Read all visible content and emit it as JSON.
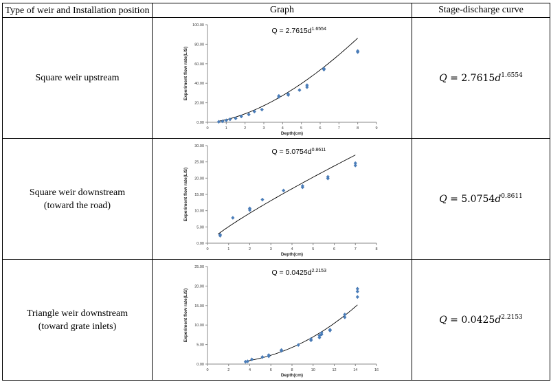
{
  "headers": {
    "col1": "Type of weir and Installation position",
    "col2": "Graph",
    "col3": "Stage-discharge curve"
  },
  "rows": [
    {
      "type_line1": "Square weir upstream",
      "type_line2": "",
      "equation": {
        "coef": "Q = 2.7615d",
        "exp": "1.6554"
      },
      "curve": {
        "prefix": "Q",
        "mid": " = 2.7615",
        "var": "d",
        "exp": "1.6554"
      }
    },
    {
      "type_line1": "Square weir downstream",
      "type_line2": "(toward the road)",
      "equation": {
        "coef": "Q = 5.0754d",
        "exp": "0.8611"
      },
      "curve": {
        "prefix": "Q",
        "mid": " = 5.0754",
        "var": "d",
        "exp": "0.8611"
      }
    },
    {
      "type_line1": "Triangle weir downstream",
      "type_line2": "(toward grate inlets)",
      "equation": {
        "coef": "Q = 0.0425d",
        "exp": "2.2153"
      },
      "curve": {
        "prefix": "Q",
        "mid": " = 0.0425",
        "var": "d",
        "exp": "2.2153"
      }
    }
  ],
  "chart_data": [
    {
      "type": "scatter",
      "xlabel": "Depth(cm)",
      "ylabel": "Experiment flow rate(L/S)",
      "xlim": [
        0,
        9
      ],
      "ylim": [
        0,
        100
      ],
      "xticks": [
        "0",
        "1",
        "2",
        "3",
        "4",
        "5",
        "6",
        "7",
        "8",
        "9"
      ],
      "yticks": [
        "0.00",
        "20.00",
        "40.00",
        "60.00",
        "80.00",
        "100.00"
      ],
      "fit": {
        "a": 2.7615,
        "b": 1.6554,
        "x_from": 0.6,
        "x_to": 8
      },
      "annotation": {
        "text": "Q = 2.7615d",
        "sup": "1.6554"
      },
      "points": [
        [
          0.6,
          0.5
        ],
        [
          0.8,
          1
        ],
        [
          1.0,
          2
        ],
        [
          1.2,
          3
        ],
        [
          1.5,
          4
        ],
        [
          1.8,
          6
        ],
        [
          2.2,
          8
        ],
        [
          2.5,
          11
        ],
        [
          2.9,
          13
        ],
        [
          3.8,
          26
        ],
        [
          3.8,
          27
        ],
        [
          4.3,
          28
        ],
        [
          4.3,
          29
        ],
        [
          4.9,
          33
        ],
        [
          5.3,
          36
        ],
        [
          5.3,
          38
        ],
        [
          6.2,
          54
        ],
        [
          6.2,
          55
        ],
        [
          8.0,
          72
        ],
        [
          8.0,
          73
        ]
      ]
    },
    {
      "type": "scatter",
      "xlabel": "Depth(cm)",
      "ylabel": "Experiment flow rate(L/S)",
      "xlim": [
        0,
        8
      ],
      "ylim": [
        0,
        30
      ],
      "xticks": [
        "0",
        "1",
        "2",
        "3",
        "4",
        "5",
        "6",
        "7",
        "8"
      ],
      "yticks": [
        "0.00",
        "5.00",
        "10.00",
        "15.00",
        "20.00",
        "25.00",
        "30.00"
      ],
      "fit": {
        "a": 5.0754,
        "b": 0.8611,
        "x_from": 0.5,
        "x_to": 7
      },
      "annotation": {
        "text": "Q = 5.0754d",
        "sup": "0.8611"
      },
      "points": [
        [
          0.6,
          2.3
        ],
        [
          0.6,
          2.6
        ],
        [
          1.2,
          7.8
        ],
        [
          2.0,
          10.2
        ],
        [
          2.0,
          10.7
        ],
        [
          2.6,
          13.4
        ],
        [
          3.6,
          16.2
        ],
        [
          4.5,
          17.2
        ],
        [
          4.5,
          17.6
        ],
        [
          5.7,
          19.9
        ],
        [
          5.7,
          20.4
        ],
        [
          7.0,
          23.9
        ],
        [
          7.0,
          24.6
        ]
      ]
    },
    {
      "type": "scatter",
      "xlabel": "Depth(cm)",
      "ylabel": "Experiment flow rate(L/S)",
      "xlim": [
        0,
        16
      ],
      "ylim": [
        0,
        25
      ],
      "xticks": [
        "0",
        "2",
        "4",
        "6",
        "8",
        "10",
        "12",
        "14",
        "16"
      ],
      "yticks": [
        "0.00",
        "5.00",
        "10.00",
        "15.00",
        "20.00",
        "25.00"
      ],
      "fit": {
        "a": 0.0425,
        "b": 2.2153,
        "x_from": 3.6,
        "x_to": 14.2
      },
      "annotation": {
        "text": "Q = 0.0425d",
        "sup": "2.2153"
      },
      "points": [
        [
          3.6,
          0.6
        ],
        [
          3.8,
          0.7
        ],
        [
          4.2,
          1.2
        ],
        [
          5.2,
          1.8
        ],
        [
          5.8,
          2.0
        ],
        [
          5.8,
          2.3
        ],
        [
          7.0,
          3.4
        ],
        [
          7.0,
          3.6
        ],
        [
          8.6,
          4.9
        ],
        [
          9.8,
          6.1
        ],
        [
          9.8,
          6.4
        ],
        [
          10.6,
          6.8
        ],
        [
          10.6,
          7.3
        ],
        [
          10.8,
          7.6
        ],
        [
          10.8,
          8.0
        ],
        [
          11.6,
          8.6
        ],
        [
          11.6,
          8.8
        ],
        [
          13.0,
          12.0
        ],
        [
          13.0,
          12.7
        ],
        [
          14.2,
          17.2
        ],
        [
          14.2,
          18.6
        ],
        [
          14.2,
          19.3
        ]
      ]
    }
  ]
}
